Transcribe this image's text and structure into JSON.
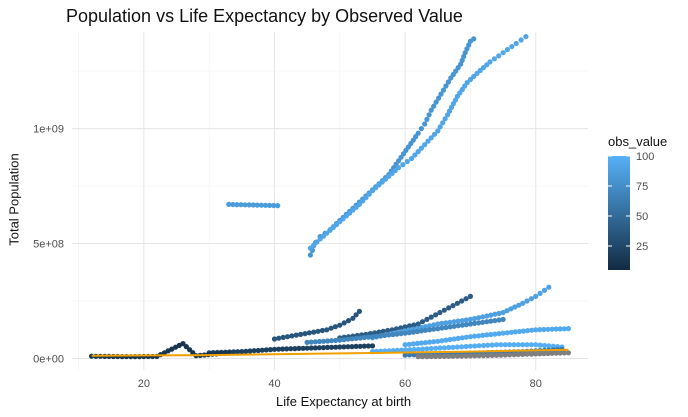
{
  "chart_data": {
    "type": "scatter",
    "title": "Population vs Life Expectancy by Observed Value",
    "xlabel": "Life Expectancy at birth",
    "ylabel": "Total Population",
    "x_ticks": [
      20,
      40,
      60,
      80
    ],
    "x_tick_labels": [
      "20",
      "40",
      "60",
      "80"
    ],
    "y_ticks": [
      0,
      500000000,
      1000000000
    ],
    "y_tick_labels": [
      "0e+00",
      "5e+08",
      "1e+09"
    ],
    "xlim": [
      9,
      88
    ],
    "ylim": [
      -50000000,
      1420000000
    ],
    "grid": true,
    "legend": {
      "title": "obs_value",
      "position": "right",
      "type": "colorbar",
      "range": [
        5,
        100
      ],
      "breaks": [
        25,
        50,
        75,
        100
      ],
      "break_labels": [
        "25",
        "50",
        "75",
        "100"
      ],
      "low_color": "#132B43",
      "high_color": "#56B1F7"
    },
    "na_color": "#7f7f7f",
    "trend_line": {
      "color": "#f0a000",
      "points": [
        [
          12,
          12000000
        ],
        [
          30,
          15000000
        ],
        [
          50,
          22000000
        ],
        [
          70,
          30000000
        ],
        [
          85,
          38000000
        ]
      ]
    },
    "series": [
      {
        "points": [
          [
            45.5,
            450000000
          ],
          [
            45.8,
            470000000
          ],
          [
            46.0,
            490000000
          ],
          [
            46.3,
            505000000
          ],
          [
            47,
            530000000
          ],
          [
            48.5,
            560000000
          ],
          [
            50,
            600000000
          ],
          [
            51.5,
            640000000
          ],
          [
            53,
            680000000
          ],
          [
            54.5,
            720000000
          ],
          [
            56,
            760000000
          ],
          [
            57.5,
            800000000
          ],
          [
            59,
            860000000
          ],
          [
            60.5,
            920000000
          ],
          [
            62,
            980000000
          ],
          [
            63,
            1020000000
          ],
          [
            64,
            1080000000
          ],
          [
            65.5,
            1150000000
          ],
          [
            67,
            1220000000
          ],
          [
            68.5,
            1280000000
          ],
          [
            69.2,
            1330000000
          ],
          [
            70,
            1380000000
          ],
          [
            70.5,
            1390000000
          ]
        ],
        "value": 80
      },
      {
        "points": [
          [
            45.5,
            480000000
          ],
          [
            47,
            520000000
          ],
          [
            49,
            570000000
          ],
          [
            51,
            620000000
          ],
          [
            53,
            670000000
          ],
          [
            55,
            730000000
          ],
          [
            57,
            780000000
          ],
          [
            59,
            830000000
          ],
          [
            61,
            870000000
          ],
          [
            63,
            930000000
          ],
          [
            65,
            990000000
          ],
          [
            66.5,
            1060000000
          ],
          [
            68,
            1140000000
          ],
          [
            69.5,
            1200000000
          ],
          [
            71,
            1240000000
          ],
          [
            73,
            1290000000
          ],
          [
            75,
            1330000000
          ],
          [
            77,
            1370000000
          ],
          [
            78.5,
            1400000000
          ]
        ],
        "value": 92
      },
      {
        "points": [
          [
            33,
            670000000
          ],
          [
            40.5,
            665000000
          ]
        ],
        "value": 85
      },
      {
        "points": [
          [
            40,
            85000000
          ],
          [
            42,
            95000000
          ],
          [
            44,
            105000000
          ],
          [
            46,
            115000000
          ],
          [
            48,
            125000000
          ],
          [
            50,
            145000000
          ],
          [
            52,
            175000000
          ],
          [
            53,
            205000000
          ]
        ],
        "value": 35
      },
      {
        "points": [
          [
            50,
            90000000
          ],
          [
            54,
            105000000
          ],
          [
            58,
            125000000
          ],
          [
            62,
            150000000
          ],
          [
            64,
            180000000
          ],
          [
            66,
            210000000
          ],
          [
            68,
            240000000
          ],
          [
            70,
            270000000
          ]
        ],
        "value": 40
      },
      {
        "points": [
          [
            55,
            90000000
          ],
          [
            60,
            120000000
          ],
          [
            65,
            150000000
          ],
          [
            70,
            170000000
          ],
          [
            75,
            200000000
          ],
          [
            78,
            240000000
          ],
          [
            80,
            270000000
          ],
          [
            82,
            310000000
          ]
        ],
        "value": 88
      },
      {
        "points": [
          [
            45,
            70000000
          ],
          [
            50,
            80000000
          ],
          [
            55,
            95000000
          ],
          [
            60,
            110000000
          ],
          [
            65,
            130000000
          ],
          [
            70,
            150000000
          ],
          [
            75,
            170000000
          ]
        ],
        "value": 70
      },
      {
        "points": [
          [
            60,
            60000000
          ],
          [
            65,
            75000000
          ],
          [
            70,
            95000000
          ],
          [
            75,
            110000000
          ],
          [
            80,
            125000000
          ],
          [
            85,
            130000000
          ]
        ],
        "value": 95
      },
      {
        "points": [
          [
            30,
            25000000
          ],
          [
            35,
            30000000
          ],
          [
            40,
            40000000
          ],
          [
            45,
            45000000
          ],
          [
            50,
            50000000
          ],
          [
            55,
            55000000
          ]
        ],
        "value": 20
      },
      {
        "points": [
          [
            12,
            10000000
          ],
          [
            18,
            8000000
          ],
          [
            22,
            9000000
          ],
          [
            26,
            65000000
          ],
          [
            28,
            12000000
          ],
          [
            33,
            25000000
          ]
        ],
        "value": 12
      },
      {
        "points": [
          [
            55,
            30000000
          ],
          [
            62,
            40000000
          ],
          [
            68,
            50000000
          ],
          [
            74,
            60000000
          ],
          [
            80,
            60000000
          ],
          [
            84,
            50000000
          ]
        ],
        "value": 98
      },
      {
        "points": [
          [
            60,
            15000000
          ],
          [
            66,
            20000000
          ],
          [
            72,
            25000000
          ],
          [
            78,
            30000000
          ],
          [
            84,
            40000000
          ]
        ],
        "value": 60
      },
      {
        "points": [
          [
            62,
            8000000
          ],
          [
            68,
            10000000
          ],
          [
            74,
            14000000
          ],
          [
            80,
            20000000
          ],
          [
            85,
            25000000
          ]
        ],
        "value": null
      }
    ]
  }
}
